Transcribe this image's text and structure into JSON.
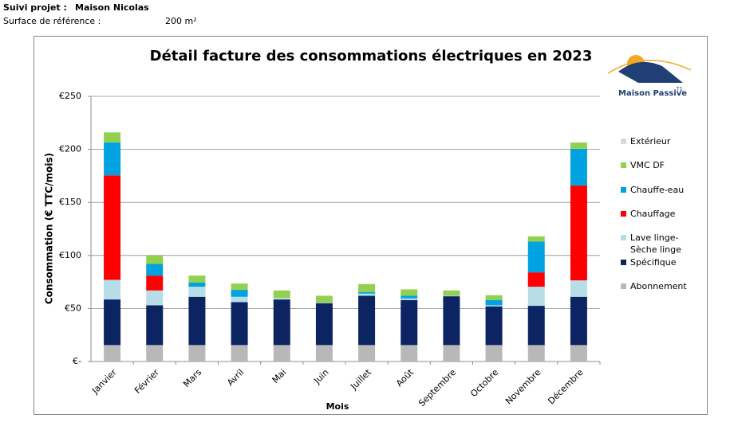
{
  "header": {
    "project_label": "Suivi projet :",
    "project_name": "Maison Nicolas",
    "surface_label": "Surface de référence :",
    "surface_value": "200 m²"
  },
  "logo": {
    "name": "Maison Passive",
    "number": "71"
  },
  "chart_data": {
    "type": "stacked_bar",
    "title": "Détail facture des consommations électriques en 2023",
    "x_label": "Mois",
    "y_label": "Consommation (€ TTC/mois)",
    "categories": [
      "Janvier",
      "Février",
      "Mars",
      "Avril",
      "Mai",
      "Juin",
      "Juillet",
      "Août",
      "Septembre",
      "Octobre",
      "Novembre",
      "Décembre"
    ],
    "series": [
      {
        "name": "Abonnement",
        "color": "#b8b8b8",
        "values": [
          15.5,
          15.5,
          15.5,
          15.5,
          15.5,
          15.5,
          15.5,
          15.5,
          15.5,
          15.5,
          15.5,
          15.5
        ]
      },
      {
        "name": "Spécifique",
        "color": "#0c2461",
        "values": [
          43,
          37.5,
          45.5,
          40.5,
          43,
          39.5,
          46.5,
          42.5,
          46,
          36.5,
          37,
          45.5
        ]
      },
      {
        "name": "Lave linge-Sèche linge",
        "color": "#b7dde8",
        "values": [
          18.5,
          14,
          9.5,
          5,
          1.5,
          0.5,
          2,
          1.5,
          0.5,
          1,
          18,
          15.5
        ]
      },
      {
        "name": "Chauffage",
        "color": "#ff0000",
        "values": [
          98.5,
          14,
          0,
          0,
          0,
          0,
          0,
          0,
          0,
          0,
          13.5,
          89.5
        ]
      },
      {
        "name": "Chauffe-eau",
        "color": "#00a2e0",
        "values": [
          31,
          11,
          4,
          6.5,
          0,
          0,
          1.5,
          2.5,
          0,
          5,
          29,
          34.5
        ]
      },
      {
        "name": "VMC DF",
        "color": "#92d050",
        "values": [
          9.5,
          8,
          6.5,
          6,
          7,
          6.5,
          7.5,
          6,
          5,
          4.5,
          5,
          6
        ]
      },
      {
        "name": "Extérieur",
        "color": "#d9d9d9",
        "values": [
          0,
          0,
          0,
          0,
          0,
          0,
          0,
          0,
          0,
          0,
          0,
          0
        ]
      }
    ],
    "ylim": [
      0,
      250
    ],
    "yticks": [
      {
        "value": 0,
        "label": "€-"
      },
      {
        "value": 50,
        "label": "€50"
      },
      {
        "value": 100,
        "label": "€100"
      },
      {
        "value": 150,
        "label": "€150"
      },
      {
        "value": 200,
        "label": "€200"
      },
      {
        "value": 250,
        "label": "€250"
      }
    ],
    "grid": true
  }
}
